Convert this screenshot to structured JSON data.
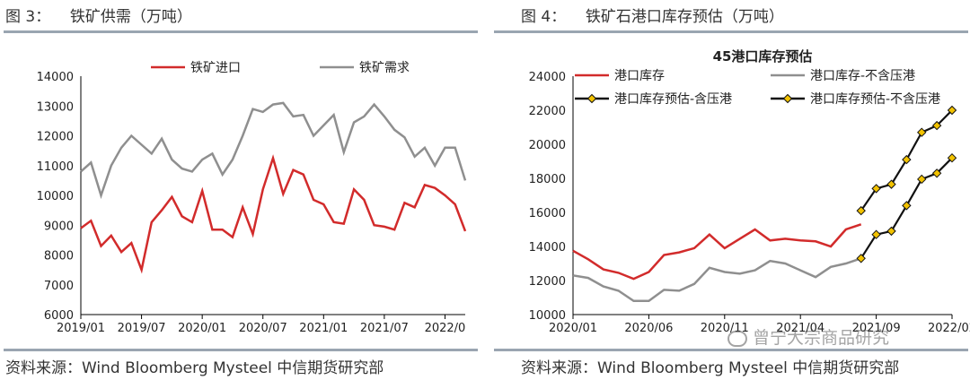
{
  "panels": [
    {
      "fig_label": "图 3：",
      "fig_title": "铁矿供需（万吨）",
      "source": "资料来源：Wind Bloomberg Mysteel 中信期货研究部"
    },
    {
      "fig_label": "图 4：",
      "fig_title": "铁矿石港口库存预估（万吨）",
      "source": "资料来源：Wind Bloomberg Mysteel 中信期货研究部"
    }
  ],
  "watermark": "曾宁大宗商品研究",
  "colors": {
    "red": "#d22b2b",
    "gray": "#8f8f8f",
    "black": "#111111",
    "marker": "#f2c200"
  },
  "chart_data": [
    {
      "type": "line",
      "title": "",
      "x_ticks": [
        "2019/01",
        "2019/07",
        "2020/01",
        "2020/07",
        "2021/01",
        "2021/07",
        "2022/0"
      ],
      "ylim": [
        6000,
        14000
      ],
      "y_ticks": [
        "6000",
        "7000",
        "8000",
        "9000",
        "10000",
        "11000",
        "12000",
        "13000",
        "14000"
      ],
      "legend_position": "top",
      "series": [
        {
          "name": "铁矿进口",
          "color": "#d22b2b",
          "values": [
            8900,
            9150,
            8300,
            8650,
            8100,
            8400,
            7500,
            9100,
            9500,
            9950,
            9300,
            9100,
            10150,
            8850,
            8850,
            8600,
            9600,
            8700,
            10200,
            11250,
            10050,
            10850,
            10700,
            9850,
            9700,
            9100,
            9050,
            10200,
            9850,
            9000,
            8950,
            8850,
            9750,
            9600,
            10350,
            10250,
            10000,
            9700,
            8800
          ]
        },
        {
          "name": "铁矿需求",
          "color": "#8f8f8f",
          "values": [
            10800,
            11100,
            10000,
            11000,
            11600,
            12000,
            11700,
            11400,
            11900,
            11200,
            10900,
            10800,
            11200,
            11400,
            10700,
            11200,
            12000,
            12900,
            12800,
            13050,
            13100,
            12650,
            12700,
            12000,
            12350,
            12700,
            11450,
            12450,
            12650,
            13050,
            12650,
            12200,
            11950,
            11300,
            11600,
            11000,
            11600,
            11600,
            10500
          ]
        }
      ]
    },
    {
      "type": "line",
      "title": "45港口库存预估",
      "x_ticks": [
        "2020/01",
        "2020/06",
        "2020/11",
        "2021/04",
        "2021/09",
        "2022/02"
      ],
      "ylim": [
        10000,
        24000
      ],
      "y_ticks": [
        "10000",
        "12000",
        "14000",
        "16000",
        "18000",
        "20000",
        "22000",
        "24000"
      ],
      "legend_position": "top",
      "series": [
        {
          "name": "港口库存",
          "color": "#d22b2b",
          "values": [
            13750,
            13250,
            12650,
            12450,
            12100,
            12500,
            13500,
            13650,
            13900,
            14700,
            13900,
            14450,
            15000,
            14350,
            14450,
            14350,
            14300,
            14000,
            15000,
            15300
          ]
        },
        {
          "name": "港口库存-不含压港",
          "color": "#8f8f8f",
          "values": [
            12300,
            12150,
            11650,
            11400,
            10800,
            10800,
            11450,
            11400,
            11800,
            12750,
            12500,
            12400,
            12600,
            13150,
            13000,
            12600,
            12200,
            12800,
            13000,
            13300
          ]
        },
        {
          "name": "港口库存预估-含压港",
          "color": "#111111",
          "marker": true,
          "start_index": 19,
          "values": [
            16100,
            17400,
            17650,
            19100,
            20700,
            21100,
            22000
          ]
        },
        {
          "name": "港口库存预估-不含压港",
          "color": "#111111",
          "marker": true,
          "start_index": 19,
          "values": [
            13300,
            14700,
            14900,
            16400,
            17950,
            18300,
            19200
          ]
        }
      ]
    }
  ]
}
